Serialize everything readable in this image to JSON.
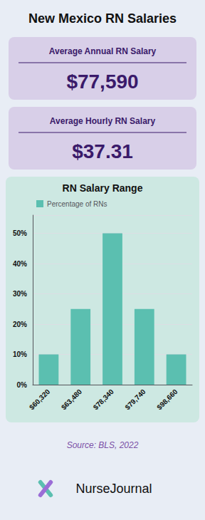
{
  "chart_data": {
    "type": "bar",
    "title": "New Mexico RN Salaries",
    "subtitle": "RN Salary Range",
    "categories": [
      "$60,320",
      "$63,480",
      "$78,340",
      "$79,740",
      "$98,660"
    ],
    "series": [
      {
        "name": "Percentage of RNs",
        "color": "#5bbfb0",
        "values": [
          10,
          25,
          50,
          25,
          10
        ]
      }
    ],
    "ylim": [
      0,
      56
    ],
    "yticks": [
      {
        "value": 0,
        "label": "0%"
      },
      {
        "value": 10,
        "label": "10%"
      },
      {
        "value": 20,
        "label": "20%"
      },
      {
        "value": 30,
        "label": "30%"
      },
      {
        "value": 40,
        "label": "40%"
      },
      {
        "value": 50,
        "label": "50%"
      }
    ],
    "grid": true,
    "legend": "upper left",
    "annotations": [
      "Average Annual RN Salary",
      "$77,590",
      "Average Hourly RN Salary",
      "$37.31",
      "Source: BLS, 2022",
      "NurseJournal"
    ]
  }
}
